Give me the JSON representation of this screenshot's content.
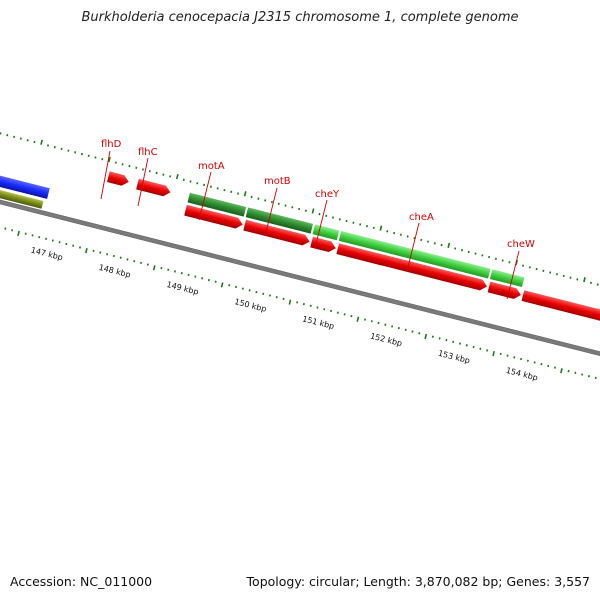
{
  "title": "Burkholderia cenocepacia J2315 chromosome 1, complete genome",
  "footer": {
    "accession_label": "Accession:",
    "accession": "NC_011000",
    "topology_label": "Topology:",
    "topology": "circular",
    "length_label": "Length:",
    "length": "3,870,082 bp",
    "genes_label": "Genes:",
    "genes": "3,557"
  },
  "kbp_labels": [
    "147 kbp",
    "148 kbp",
    "149 kbp",
    "150 kbp",
    "151 kbp",
    "152 kbp",
    "153 kbp",
    "154 kbp"
  ],
  "gene_labels": [
    "flhD",
    "flhC",
    "motA",
    "motB",
    "cheY",
    "cheA",
    "cheW"
  ],
  "colors": {
    "cds": "#e80000",
    "gene_dark": "#2e8b2e",
    "gene_light": "#4fd24f",
    "backbone": "#808080",
    "tick": "#1a7a1a",
    "label": "#d40000",
    "blue_feature": "#1a2cff",
    "olive_feature": "#7a8a1a"
  }
}
